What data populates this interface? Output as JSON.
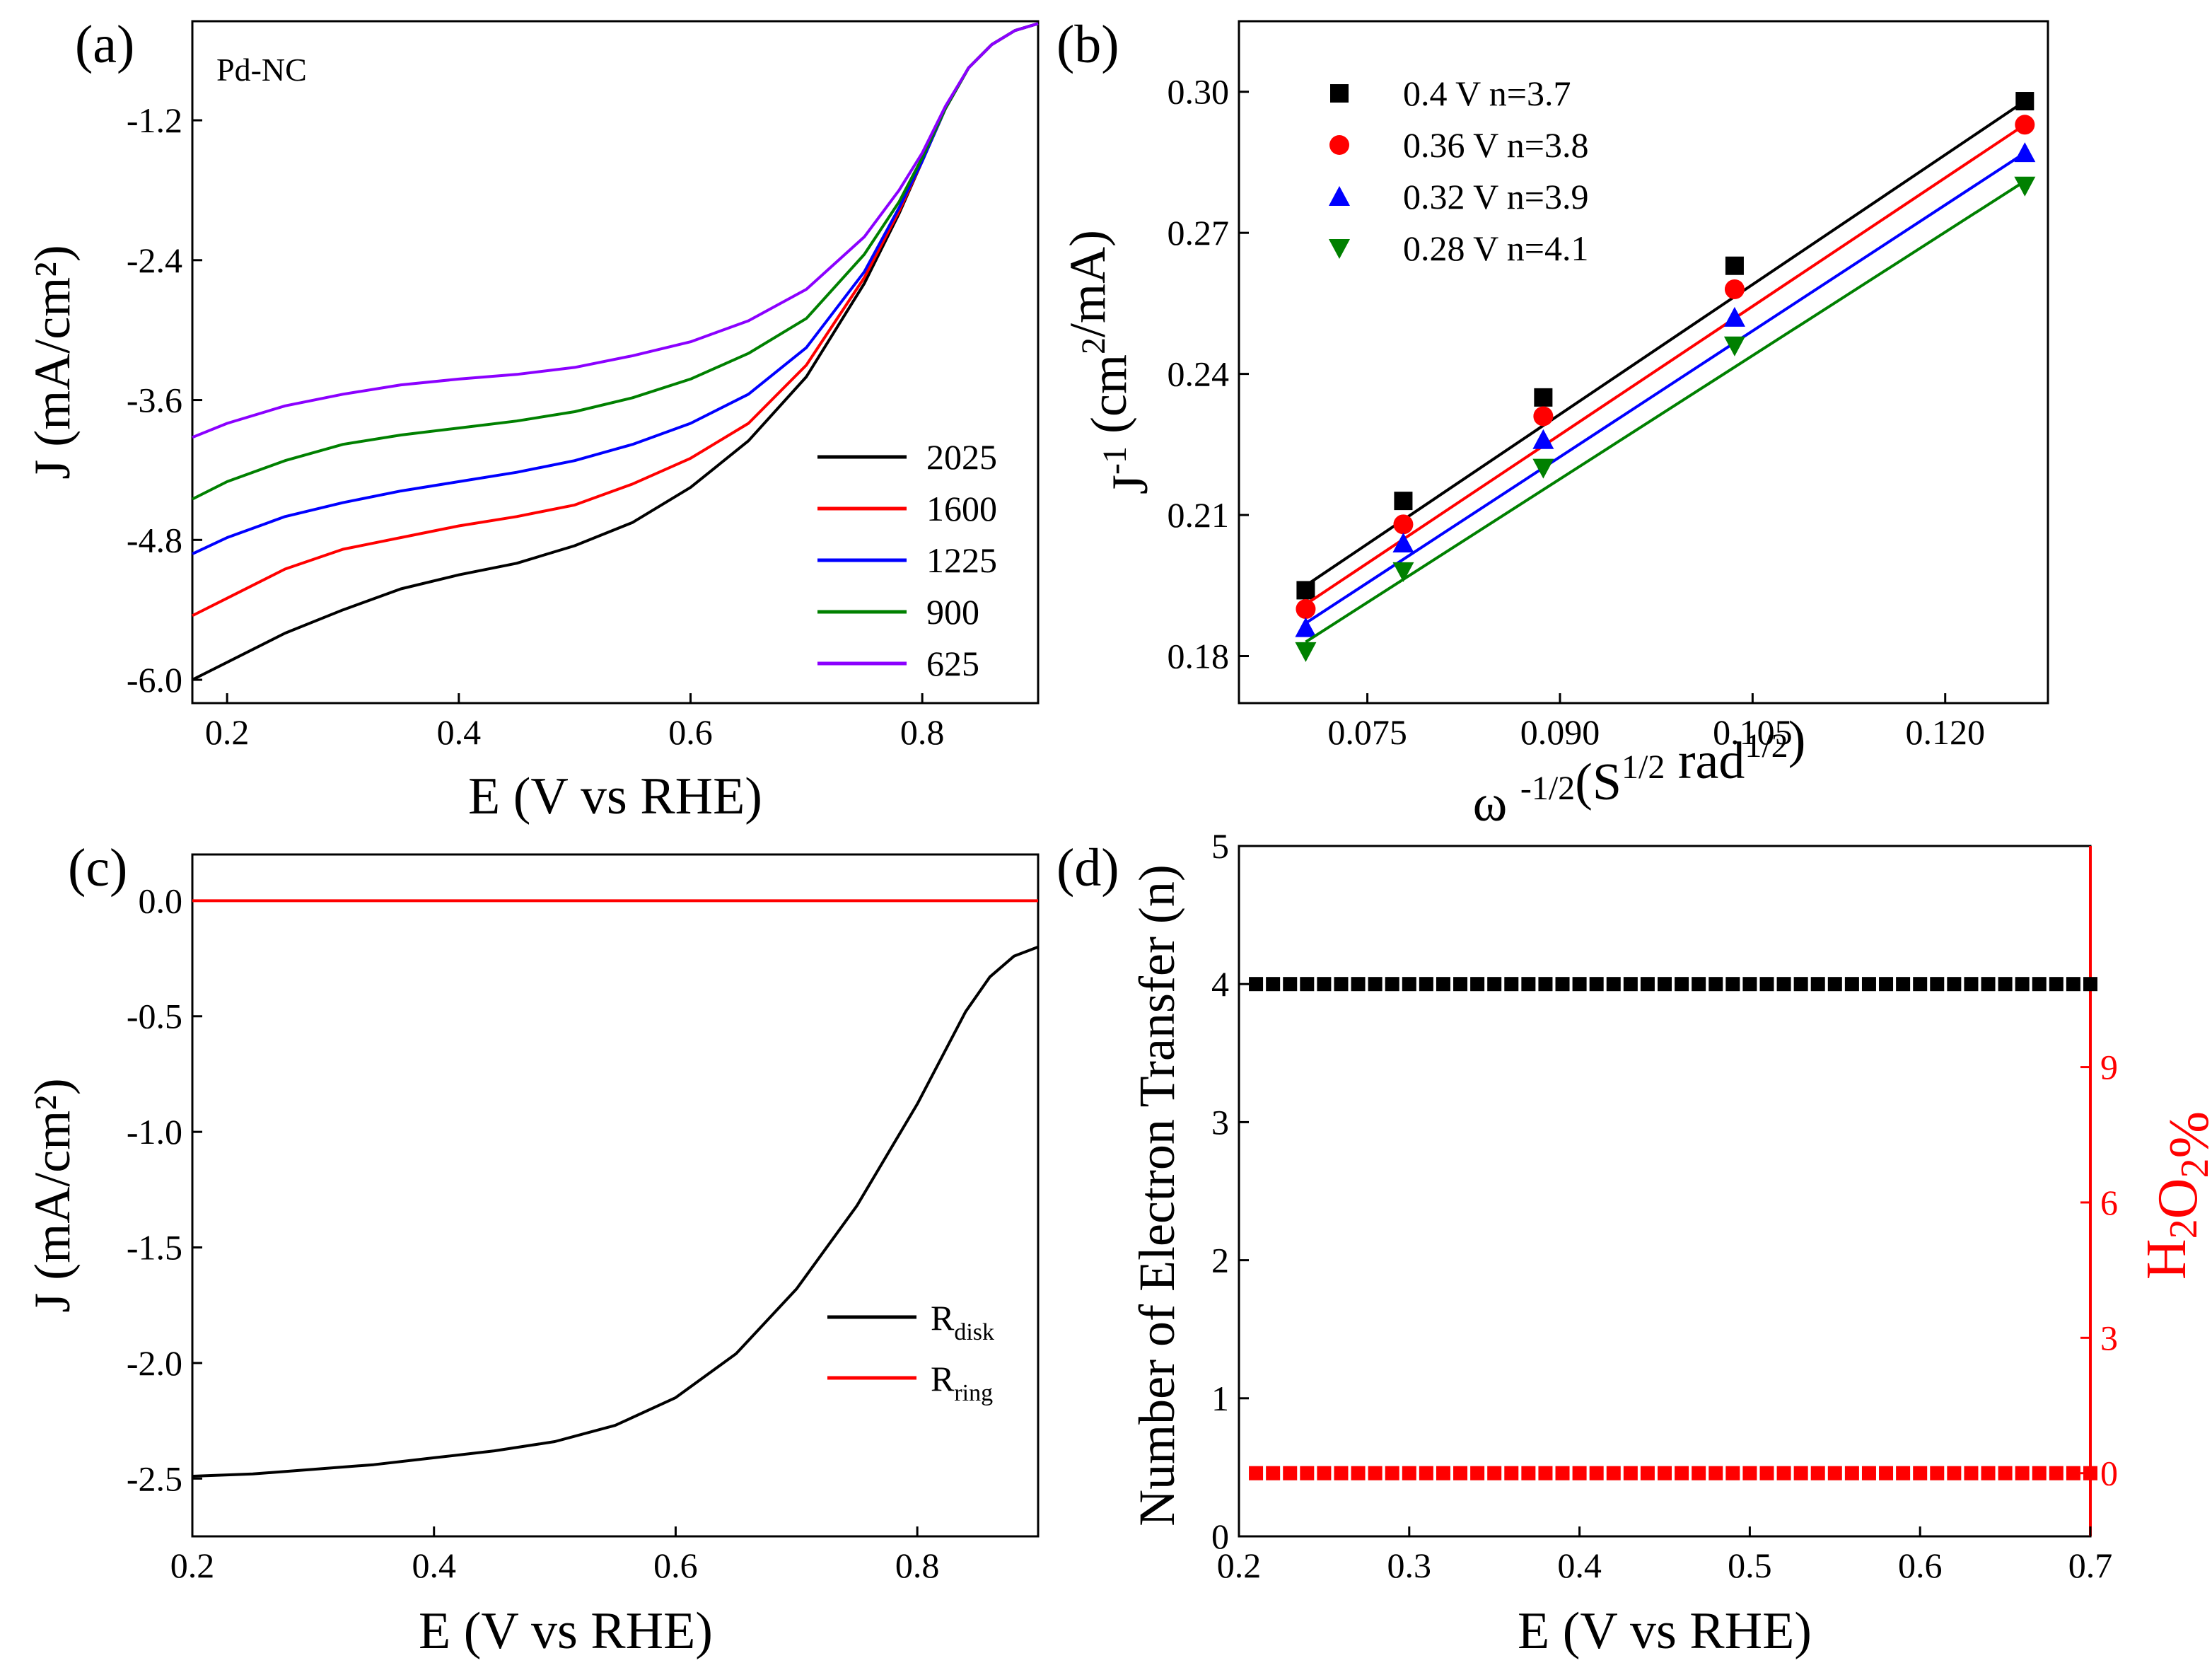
{
  "figure": {
    "panels": [
      "(a)",
      "(b)",
      "(c)",
      "(d)"
    ]
  },
  "chart_data": [
    {
      "panel": "(a)",
      "type": "line",
      "annotation": "Pd-NC",
      "xlabel": "E (V vs RHE)",
      "ylabel": "J (mA/cm²)",
      "xlim": [
        0.17,
        0.9
      ],
      "ylim": [
        -6.2,
        -0.35
      ],
      "xticks": [
        0.2,
        0.4,
        0.6,
        0.8
      ],
      "xtick_labels": [
        "0.2",
        "0.4",
        "0.6",
        "0.8"
      ],
      "yticks": [
        -1.2,
        -2.4,
        -3.6,
        -4.8,
        -6.0
      ],
      "ytick_labels": [
        "-1.2",
        "-2.4",
        "-3.6",
        "-4.8",
        "-6.0"
      ],
      "legend_position": "bottom-right",
      "series": [
        {
          "name": "2025",
          "color": "#000000",
          "x": [
            0.17,
            0.2,
            0.25,
            0.3,
            0.35,
            0.4,
            0.45,
            0.5,
            0.55,
            0.6,
            0.65,
            0.7,
            0.75,
            0.78,
            0.8,
            0.82,
            0.84,
            0.86,
            0.88,
            0.9
          ],
          "y": [
            -6.0,
            -5.85,
            -5.6,
            -5.4,
            -5.22,
            -5.1,
            -5.0,
            -4.85,
            -4.65,
            -4.35,
            -3.95,
            -3.4,
            -2.6,
            -2.0,
            -1.55,
            -1.1,
            -0.75,
            -0.55,
            -0.43,
            -0.37
          ]
        },
        {
          "name": "1600",
          "color": "#ff0000",
          "x": [
            0.17,
            0.2,
            0.25,
            0.3,
            0.35,
            0.4,
            0.45,
            0.5,
            0.55,
            0.6,
            0.65,
            0.7,
            0.75,
            0.78,
            0.8,
            0.82,
            0.84,
            0.86,
            0.88,
            0.9
          ],
          "y": [
            -5.45,
            -5.3,
            -5.05,
            -4.88,
            -4.78,
            -4.68,
            -4.6,
            -4.5,
            -4.32,
            -4.1,
            -3.8,
            -3.3,
            -2.55,
            -1.98,
            -1.55,
            -1.1,
            -0.75,
            -0.55,
            -0.43,
            -0.37
          ]
        },
        {
          "name": "1225",
          "color": "#0000ff",
          "x": [
            0.17,
            0.2,
            0.25,
            0.3,
            0.35,
            0.4,
            0.45,
            0.5,
            0.55,
            0.6,
            0.65,
            0.7,
            0.75,
            0.78,
            0.8,
            0.82,
            0.84,
            0.86,
            0.88,
            0.9
          ],
          "y": [
            -4.92,
            -4.78,
            -4.6,
            -4.48,
            -4.38,
            -4.3,
            -4.22,
            -4.12,
            -3.98,
            -3.8,
            -3.55,
            -3.15,
            -2.5,
            -1.95,
            -1.55,
            -1.1,
            -0.75,
            -0.55,
            -0.43,
            -0.37
          ]
        },
        {
          "name": "900",
          "color": "#008000",
          "x": [
            0.17,
            0.2,
            0.25,
            0.3,
            0.35,
            0.4,
            0.45,
            0.5,
            0.55,
            0.6,
            0.65,
            0.7,
            0.75,
            0.78,
            0.8,
            0.82,
            0.84,
            0.86,
            0.88,
            0.9
          ],
          "y": [
            -4.45,
            -4.3,
            -4.12,
            -3.98,
            -3.9,
            -3.84,
            -3.78,
            -3.7,
            -3.58,
            -3.42,
            -3.2,
            -2.9,
            -2.35,
            -1.9,
            -1.52,
            -1.1,
            -0.75,
            -0.55,
            -0.43,
            -0.37
          ]
        },
        {
          "name": "625",
          "color": "#8b00ff",
          "x": [
            0.17,
            0.2,
            0.25,
            0.3,
            0.35,
            0.4,
            0.45,
            0.5,
            0.55,
            0.6,
            0.65,
            0.7,
            0.75,
            0.78,
            0.8,
            0.82,
            0.84,
            0.86,
            0.88,
            0.9
          ],
          "y": [
            -3.92,
            -3.8,
            -3.65,
            -3.55,
            -3.47,
            -3.42,
            -3.38,
            -3.32,
            -3.22,
            -3.1,
            -2.92,
            -2.65,
            -2.2,
            -1.8,
            -1.48,
            -1.08,
            -0.75,
            -0.55,
            -0.43,
            -0.37
          ]
        }
      ]
    },
    {
      "panel": "(b)",
      "type": "scatter",
      "xlabel": "ω -1/2(S1/2 rad1/2)",
      "ylabel": "J-1 (cm²/mA)",
      "xlim": [
        0.065,
        0.128
      ],
      "ylim": [
        0.17,
        0.315
      ],
      "xticks": [
        0.075,
        0.09,
        0.105,
        0.12
      ],
      "xtick_labels": [
        "0.075",
        "0.090",
        "0.105",
        "0.120"
      ],
      "yticks": [
        0.18,
        0.21,
        0.24,
        0.27,
        0.3
      ],
      "ytick_labels": [
        "0.18",
        "0.21",
        "0.24",
        "0.27",
        "0.30"
      ],
      "legend_position": "top-left",
      "x": [
        0.0702,
        0.0778,
        0.0887,
        0.1036,
        0.1262
      ],
      "series": [
        {
          "name": "0.4 V n=3.7",
          "color": "#000000",
          "marker": "square",
          "values": [
            0.194,
            0.213,
            0.235,
            0.263,
            0.298
          ],
          "fit": [
            0.195,
            0.298
          ]
        },
        {
          "name": "0.36 V n=3.8",
          "color": "#ff0000",
          "marker": "circle",
          "values": [
            0.19,
            0.208,
            0.231,
            0.258,
            0.293
          ],
          "fit": [
            0.191,
            0.293
          ]
        },
        {
          "name": "0.32 V n=3.9",
          "color": "#0000ff",
          "marker": "triangle-up",
          "values": [
            0.186,
            0.204,
            0.226,
            0.252,
            0.287
          ],
          "fit": [
            0.187,
            0.287
          ]
        },
        {
          "name": "0.28 V n=4.1",
          "color": "#008000",
          "marker": "triangle-down",
          "values": [
            0.181,
            0.198,
            0.22,
            0.246,
            0.28
          ],
          "fit": [
            0.183,
            0.281
          ]
        }
      ]
    },
    {
      "panel": "(c)",
      "type": "line",
      "xlabel": "E (V vs RHE)",
      "ylabel": "J (mA/cm²)",
      "xlim": [
        0.2,
        0.9
      ],
      "ylim": [
        -2.75,
        0.2
      ],
      "xticks": [
        0.2,
        0.4,
        0.6,
        0.8
      ],
      "xtick_labels": [
        "0.2",
        "0.4",
        "0.6",
        "0.8"
      ],
      "yticks": [
        0.0,
        -0.5,
        -1.0,
        -1.5,
        -2.0,
        -2.5
      ],
      "ytick_labels": [
        "0.0",
        "-0.5",
        "-1.0",
        "-1.5",
        "-2.0",
        "-2.5"
      ],
      "legend_position": "bottom-right",
      "series": [
        {
          "name": "R",
          "sub": "disk",
          "color": "#000000",
          "x": [
            0.2,
            0.25,
            0.3,
            0.35,
            0.4,
            0.45,
            0.5,
            0.55,
            0.6,
            0.65,
            0.7,
            0.75,
            0.8,
            0.82,
            0.84,
            0.86,
            0.88,
            0.9
          ],
          "y": [
            -2.49,
            -2.48,
            -2.46,
            -2.44,
            -2.41,
            -2.38,
            -2.34,
            -2.27,
            -2.15,
            -1.96,
            -1.68,
            -1.32,
            -0.88,
            -0.68,
            -0.48,
            -0.33,
            -0.24,
            -0.2
          ]
        },
        {
          "name": "R",
          "sub": "ring",
          "color": "#ff0000",
          "x": [
            0.2,
            0.9
          ],
          "y": [
            0.0,
            0.0
          ]
        }
      ]
    },
    {
      "panel": "(d)",
      "type": "scatter",
      "xlabel": "E (V vs RHE)",
      "ylabel": "Number of  Electron Transfer (n)",
      "y2label": "H2O2%",
      "xlim": [
        0.2,
        0.7
      ],
      "ylim": [
        0,
        5
      ],
      "y2lim": [
        -1.4,
        13.9
      ],
      "xticks": [
        0.2,
        0.3,
        0.4,
        0.5,
        0.6,
        0.7
      ],
      "xtick_labels": [
        "0.2",
        "0.3",
        "0.4",
        "0.5",
        "0.6",
        "0.7"
      ],
      "yticks": [
        0,
        1,
        2,
        3,
        4,
        5
      ],
      "ytick_labels": [
        "0",
        "1",
        "2",
        "3",
        "4",
        "5"
      ],
      "y2ticks": [
        0,
        3,
        6,
        9
      ],
      "y2tick_labels": [
        "0",
        "3",
        "6",
        "9"
      ],
      "series": [
        {
          "name": "n",
          "color": "#000000",
          "axis": "left",
          "x_start": 0.21,
          "x_end": 0.7,
          "x_step": 0.01,
          "value": 4.0
        },
        {
          "name": "H2O2%",
          "color": "#ff0000",
          "axis": "right",
          "x_start": 0.21,
          "x_end": 0.7,
          "x_step": 0.01,
          "value": 0.0
        }
      ]
    }
  ]
}
